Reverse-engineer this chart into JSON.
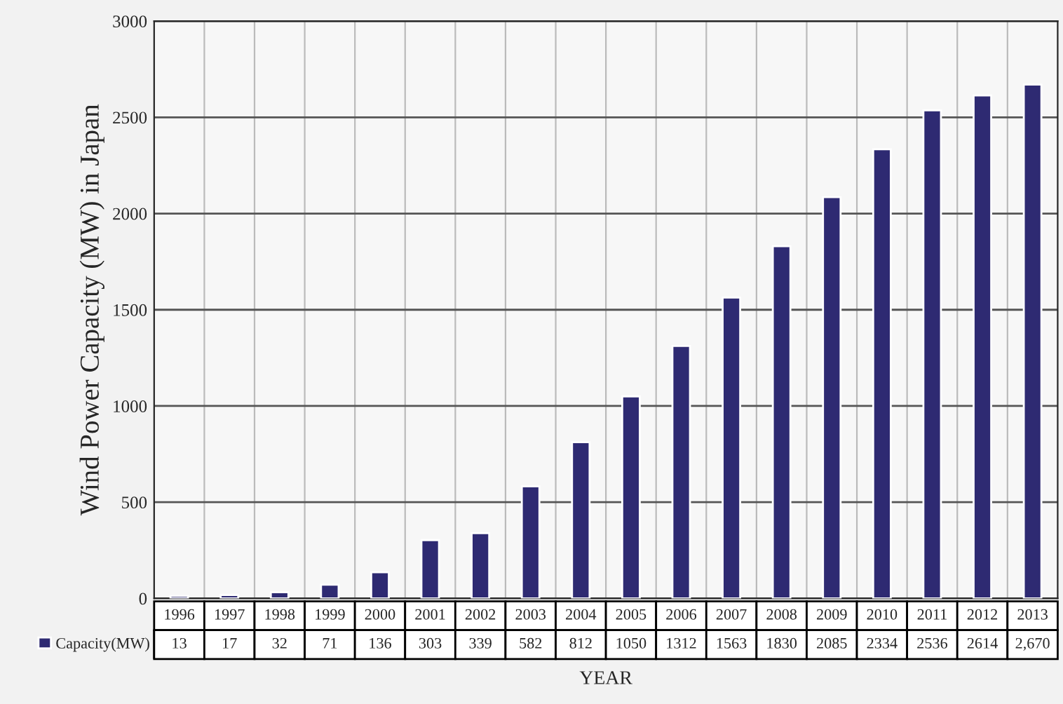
{
  "chart_data": {
    "type": "bar",
    "xlabel": "YEAR",
    "ylabel": "Wind Power Capacity (MW) in Japan",
    "categories": [
      "1996",
      "1997",
      "1998",
      "1999",
      "2000",
      "2001",
      "2002",
      "2003",
      "2004",
      "2005",
      "2006",
      "2007",
      "2008",
      "2009",
      "2010",
      "2011",
      "2012",
      "2013"
    ],
    "series": [
      {
        "name": "Capacity(MW)",
        "color": "#2e2a72",
        "values": [
          13,
          17,
          32,
          71,
          136,
          303,
          339,
          582,
          812,
          1050,
          1312,
          1563,
          1830,
          2085,
          2334,
          2536,
          2614,
          2670
        ],
        "value_labels": [
          "13",
          "17",
          "32",
          "71",
          "136",
          "303",
          "339",
          "582",
          "812",
          "1050",
          "1312",
          "1563",
          "1830",
          "2085",
          "2334",
          "2536",
          "2614",
          "2,670"
        ]
      }
    ],
    "ylim": [
      0,
      3000
    ],
    "yticks": [
      0,
      500,
      1000,
      1500,
      2000,
      2500,
      3000
    ],
    "grid": true,
    "legend": "bottom left"
  }
}
